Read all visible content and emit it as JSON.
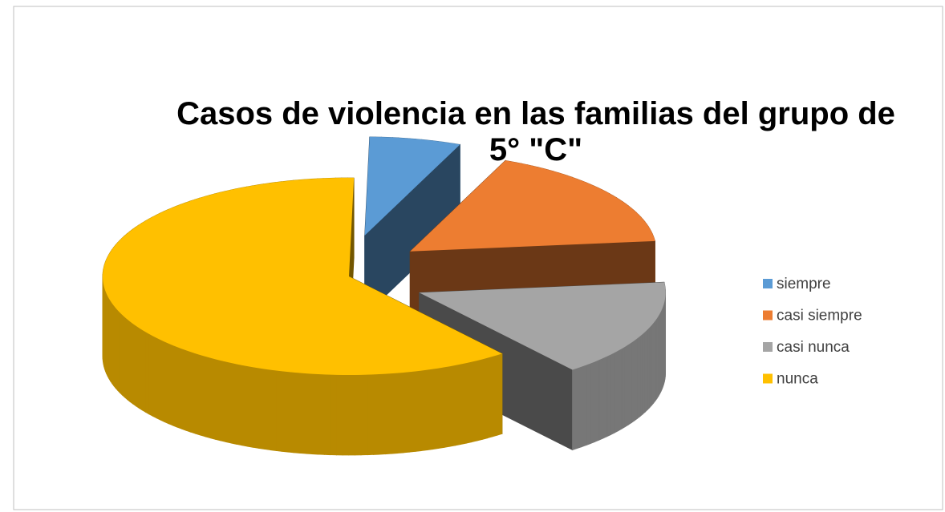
{
  "chart_data": {
    "type": "pie3d",
    "title": "Casos de violencia en las familias del grupo de 5° \"C\"",
    "categories": [
      "siempre",
      "casi siempre",
      "casi nunca",
      "nunca"
    ],
    "values": [
      6,
      17,
      16,
      61
    ],
    "colors": [
      "#5b9bd5",
      "#ed7d31",
      "#a5a5a5",
      "#ffc000"
    ],
    "legend": "right"
  }
}
